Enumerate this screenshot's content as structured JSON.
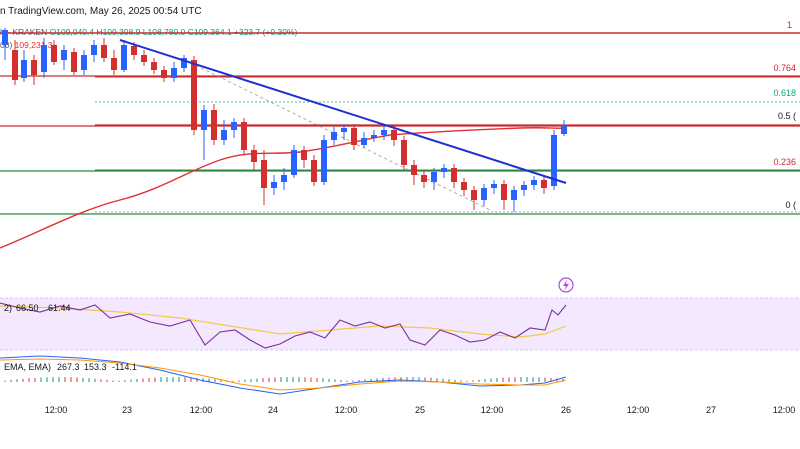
{
  "header": {
    "text": "n TradingView.com, May 26, 2025 00:54 UTC"
  },
  "ohlc": {
    "symbol_prefix": "h · KRAKEN",
    "open": "O109,040.4",
    "high": "H109,398.9",
    "low": "L108,780.0",
    "close": "C109,364.1",
    "change": "+323.7 (+0.30%)",
    "ema_label": "00)",
    "ema_value": "109,231.3"
  },
  "fib_levels": [
    {
      "label": "1",
      "price_ratio": 1.0,
      "color": "#c92a2a"
    },
    {
      "label": "0.764",
      "price_ratio": 0.764,
      "color": "#c92a2a"
    },
    {
      "label": "0.618",
      "price_ratio": 0.618,
      "color": "#0ca678"
    },
    {
      "label": "0.5 (",
      "price_ratio": 0.5,
      "color": "#131722"
    },
    {
      "label": "0.236",
      "price_ratio": 0.236,
      "color": "#c92a2a"
    },
    {
      "label": "0 (",
      "price_ratio": 0.0,
      "color": "#131722"
    }
  ],
  "rsi": {
    "label": "2)",
    "value": "66.50",
    "value2": "61.44"
  },
  "macd": {
    "label": "EMA, EMA)",
    "value1": "267.3",
    "value2": "153.3",
    "value3": "-114.1"
  },
  "x_axis": {
    "ticks": [
      "12:00",
      "23",
      "12:00",
      "24",
      "12:00",
      "25",
      "12:00",
      "26",
      "12:00",
      "27",
      "12:00"
    ]
  },
  "colors": {
    "up": "#2962ff",
    "down": "#d32f2f",
    "ema": "#e03131",
    "trendline": "#1e2fd6",
    "support": "#2b8a3e",
    "resistance": "#c92a2a",
    "rsi_band": "#f3e8fd",
    "rsi_line": "#7b2f9e",
    "rsi_ma": "#f2c94c",
    "macd_line": "#2962ff",
    "signal_line": "#ff9800"
  }
}
